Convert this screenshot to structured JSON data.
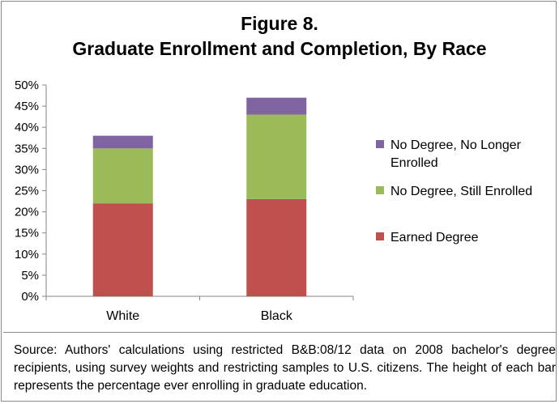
{
  "chart_data": {
    "type": "bar",
    "stacked": true,
    "title_line1": "Figure 8.",
    "title_line2": "Graduate Enrollment and Completion, By Race",
    "categories": [
      "White",
      "Black"
    ],
    "series": [
      {
        "name": "Earned Degree",
        "values": [
          22,
          23
        ],
        "color": "#c0504d"
      },
      {
        "name": "No Degree, Still Enrolled",
        "values": [
          13,
          20
        ],
        "color": "#9bbb59"
      },
      {
        "name": "No Degree, No Longer Enrolled",
        "values": [
          3,
          4
        ],
        "color": "#8064a2"
      }
    ],
    "ylim": [
      0,
      50
    ],
    "yticks": [
      "0%",
      "5%",
      "10%",
      "15%",
      "20%",
      "25%",
      "30%",
      "35%",
      "40%",
      "45%",
      "50%"
    ],
    "grid": false,
    "legend": {
      "placement": "right",
      "entries": [
        {
          "series": 2,
          "lines": [
            "No Degree, No Longer",
            "Enrolled"
          ]
        },
        {
          "series": 1,
          "lines": [
            "No Degree, Still Enrolled"
          ]
        },
        {
          "series": 0,
          "lines": [
            "Earned Degree"
          ]
        }
      ]
    }
  },
  "source_note": "Source: Authors' calculations using restricted B&B:08/12 data on 2008 bachelor's degree recipients, using survey weights and restricting samples to U.S. citizens. The height of each bar represents the percentage ever enrolling in graduate education."
}
